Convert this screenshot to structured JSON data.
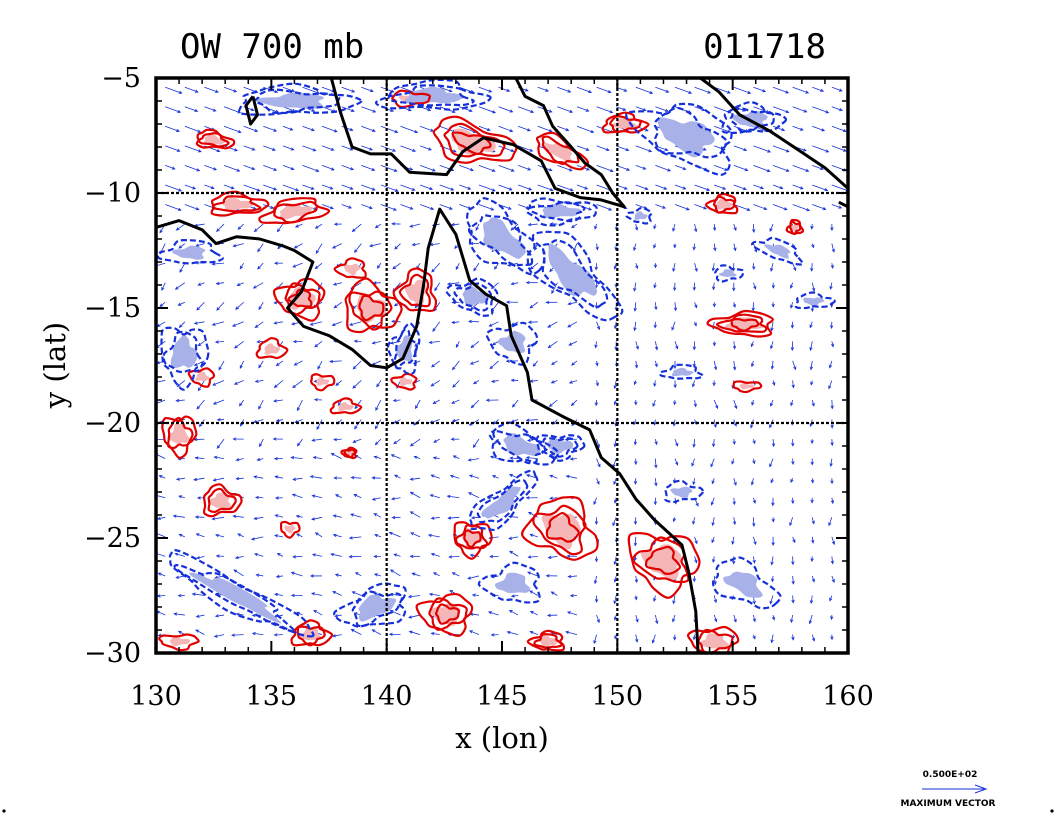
{
  "chart_data": {
    "type": "heatmap",
    "title": "OW 700 mb",
    "title_right": "011718",
    "xlabel": "x (lon)",
    "ylabel": "y (lat)",
    "xlim": [
      130,
      160
    ],
    "ylim": [
      -30,
      -5
    ],
    "xticks": [
      130,
      135,
      140,
      145,
      150,
      155,
      160
    ],
    "yticks": [
      -5,
      -10,
      -15,
      -20,
      -25,
      -30
    ],
    "grid_lines": {
      "x": [
        140,
        150
      ],
      "y": [
        -10,
        -20
      ]
    },
    "legend": {
      "value": "0.500E+02",
      "label": "MAXIMUM VECTOR",
      "placement": "bottom-right"
    },
    "colors": {
      "positive_contour": "#e00000",
      "positive_fill": "#f4b6b6",
      "negative_contour": "#1530d8",
      "negative_fill": "#a9b2e8",
      "coastline": "#000000",
      "vectors": "#1530d8"
    },
    "coastline": [
      [
        [
          130.0,
          -11.5
        ],
        [
          131.0,
          -11.2
        ],
        [
          132.0,
          -11.6
        ],
        [
          132.6,
          -12.2
        ],
        [
          133.5,
          -11.9
        ],
        [
          134.5,
          -12.0
        ],
        [
          135.5,
          -12.3
        ],
        [
          136.0,
          -12.5
        ],
        [
          136.8,
          -13.0
        ],
        [
          136.3,
          -14.3
        ],
        [
          135.7,
          -15.0
        ],
        [
          136.4,
          -15.8
        ],
        [
          137.5,
          -16.2
        ],
        [
          138.5,
          -16.8
        ],
        [
          139.3,
          -17.5
        ],
        [
          140.0,
          -17.6
        ],
        [
          140.7,
          -17.2
        ],
        [
          141.3,
          -15.8
        ],
        [
          141.6,
          -14.0
        ],
        [
          141.8,
          -12.4
        ],
        [
          142.3,
          -10.7
        ],
        [
          143.0,
          -11.8
        ],
        [
          143.6,
          -13.8
        ],
        [
          144.3,
          -14.4
        ],
        [
          145.2,
          -14.9
        ],
        [
          145.4,
          -16.2
        ],
        [
          146.1,
          -17.8
        ],
        [
          146.3,
          -19.0
        ],
        [
          147.6,
          -19.7
        ],
        [
          148.8,
          -20.3
        ],
        [
          149.3,
          -21.5
        ],
        [
          150.1,
          -22.2
        ],
        [
          150.8,
          -23.3
        ],
        [
          151.6,
          -24.2
        ],
        [
          152.8,
          -25.3
        ],
        [
          153.1,
          -26.5
        ],
        [
          153.4,
          -28.2
        ],
        [
          153.5,
          -30.0
        ]
      ],
      [
        [
          137.6,
          -5.0
        ],
        [
          138.0,
          -6.5
        ],
        [
          138.5,
          -8.0
        ],
        [
          139.3,
          -8.3
        ],
        [
          140.2,
          -8.3
        ],
        [
          141.0,
          -9.1
        ],
        [
          142.6,
          -9.2
        ],
        [
          143.3,
          -8.2
        ],
        [
          144.2,
          -7.6
        ],
        [
          145.5,
          -7.9
        ],
        [
          146.7,
          -8.6
        ],
        [
          147.3,
          -9.8
        ],
        [
          148.4,
          -10.2
        ],
        [
          149.3,
          -10.3
        ],
        [
          150.3,
          -10.6
        ],
        [
          149.8,
          -10.0
        ],
        [
          149.3,
          -9.2
        ],
        [
          148.6,
          -8.7
        ],
        [
          148.0,
          -8.0
        ],
        [
          147.2,
          -7.1
        ],
        [
          146.8,
          -6.2
        ],
        [
          146.0,
          -5.8
        ],
        [
          145.6,
          -5.0
        ]
      ],
      [
        [
          153.6,
          -5.0
        ],
        [
          154.4,
          -5.6
        ],
        [
          155.3,
          -6.6
        ],
        [
          156.6,
          -7.3
        ],
        [
          157.8,
          -8.1
        ],
        [
          159.0,
          -8.9
        ],
        [
          160.0,
          -9.8
        ]
      ],
      [
        [
          134.2,
          -5.8
        ],
        [
          134.4,
          -6.6
        ],
        [
          134.1,
          -7.0
        ],
        [
          133.9,
          -6.2
        ],
        [
          134.2,
          -5.8
        ]
      ],
      [
        [
          159.6,
          -10.4
        ],
        [
          160.0,
          -10.6
        ]
      ]
    ],
    "features": [
      {
        "sign": "pos",
        "lon": 132.5,
        "lat": -7.7,
        "rx": 0.8,
        "ry": 0.35,
        "rot": 10,
        "levels": 2
      },
      {
        "sign": "pos",
        "lon": 143.7,
        "lat": -7.8,
        "rx": 1.8,
        "ry": 0.8,
        "rot": 15,
        "levels": 3
      },
      {
        "sign": "pos",
        "lon": 147.5,
        "lat": -8.2,
        "rx": 1.2,
        "ry": 0.5,
        "rot": 30,
        "levels": 2
      },
      {
        "sign": "pos",
        "lon": 150.3,
        "lat": -7.0,
        "rx": 0.9,
        "ry": 0.4,
        "rot": 0,
        "levels": 2
      },
      {
        "sign": "pos",
        "lon": 141.0,
        "lat": -5.9,
        "rx": 0.8,
        "ry": 0.3,
        "rot": 0,
        "levels": 1
      },
      {
        "sign": "pos",
        "lon": 133.5,
        "lat": -10.5,
        "rx": 1.2,
        "ry": 0.45,
        "rot": 0,
        "levels": 2
      },
      {
        "sign": "pos",
        "lon": 136.0,
        "lat": -10.8,
        "rx": 1.3,
        "ry": 0.5,
        "rot": -10,
        "levels": 2
      },
      {
        "sign": "pos",
        "lon": 138.5,
        "lat": -13.3,
        "rx": 0.6,
        "ry": 0.4,
        "rot": 0,
        "levels": 1
      },
      {
        "sign": "pos",
        "lon": 136.3,
        "lat": -14.6,
        "rx": 1.0,
        "ry": 0.8,
        "rot": 0,
        "levels": 3
      },
      {
        "sign": "pos",
        "lon": 139.3,
        "lat": -15.0,
        "rx": 1.2,
        "ry": 1.0,
        "rot": 20,
        "levels": 3
      },
      {
        "sign": "pos",
        "lon": 141.3,
        "lat": -14.3,
        "rx": 0.8,
        "ry": 0.9,
        "rot": 0,
        "levels": 2
      },
      {
        "sign": "pos",
        "lon": 135.0,
        "lat": -16.8,
        "rx": 0.6,
        "ry": 0.4,
        "rot": 0,
        "levels": 1
      },
      {
        "sign": "pos",
        "lon": 132.0,
        "lat": -18.0,
        "rx": 0.5,
        "ry": 0.35,
        "rot": 0,
        "levels": 1
      },
      {
        "sign": "pos",
        "lon": 137.2,
        "lat": -18.2,
        "rx": 0.5,
        "ry": 0.3,
        "rot": 0,
        "levels": 1
      },
      {
        "sign": "pos",
        "lon": 138.2,
        "lat": -19.3,
        "rx": 0.6,
        "ry": 0.3,
        "rot": 0,
        "levels": 1
      },
      {
        "sign": "pos",
        "lon": 140.8,
        "lat": -18.2,
        "rx": 0.5,
        "ry": 0.3,
        "rot": 0,
        "levels": 1
      },
      {
        "sign": "pos",
        "lon": 154.6,
        "lat": -10.5,
        "rx": 0.6,
        "ry": 0.4,
        "rot": 0,
        "levels": 2
      },
      {
        "sign": "pos",
        "lon": 157.7,
        "lat": -11.5,
        "rx": 0.3,
        "ry": 0.3,
        "rot": 0,
        "levels": 2
      },
      {
        "sign": "pos",
        "lon": 155.5,
        "lat": -15.7,
        "rx": 1.3,
        "ry": 0.5,
        "rot": 0,
        "levels": 3
      },
      {
        "sign": "pos",
        "lon": 155.6,
        "lat": -18.4,
        "rx": 0.6,
        "ry": 0.2,
        "rot": 0,
        "levels": 1
      },
      {
        "sign": "pos",
        "lon": 131.0,
        "lat": -20.5,
        "rx": 0.7,
        "ry": 0.8,
        "rot": 0,
        "levels": 2
      },
      {
        "sign": "pos",
        "lon": 132.8,
        "lat": -23.4,
        "rx": 0.8,
        "ry": 0.6,
        "rot": 0,
        "levels": 2
      },
      {
        "sign": "pos",
        "lon": 138.4,
        "lat": -21.3,
        "rx": 0.3,
        "ry": 0.2,
        "rot": 0,
        "levels": 2
      },
      {
        "sign": "pos",
        "lon": 143.7,
        "lat": -25.0,
        "rx": 0.8,
        "ry": 0.7,
        "rot": 0,
        "levels": 3
      },
      {
        "sign": "pos",
        "lon": 147.6,
        "lat": -24.6,
        "rx": 1.5,
        "ry": 1.2,
        "rot": 30,
        "levels": 3
      },
      {
        "sign": "pos",
        "lon": 152.0,
        "lat": -26.0,
        "rx": 1.5,
        "ry": 1.2,
        "rot": 20,
        "levels": 3
      },
      {
        "sign": "pos",
        "lon": 142.6,
        "lat": -28.3,
        "rx": 1.1,
        "ry": 0.8,
        "rot": 0,
        "levels": 3
      },
      {
        "sign": "pos",
        "lon": 135.8,
        "lat": -24.6,
        "rx": 0.4,
        "ry": 0.3,
        "rot": 0,
        "levels": 1
      },
      {
        "sign": "pos",
        "lon": 136.7,
        "lat": -29.2,
        "rx": 0.8,
        "ry": 0.5,
        "rot": 0,
        "levels": 2
      },
      {
        "sign": "pos",
        "lon": 131.0,
        "lat": -29.5,
        "rx": 0.8,
        "ry": 0.3,
        "rot": 0,
        "levels": 1
      },
      {
        "sign": "pos",
        "lon": 154.2,
        "lat": -29.5,
        "rx": 1.0,
        "ry": 0.6,
        "rot": 0,
        "levels": 2
      },
      {
        "sign": "pos",
        "lon": 147.0,
        "lat": -29.5,
        "rx": 0.7,
        "ry": 0.4,
        "rot": 0,
        "levels": 2
      },
      {
        "sign": "neg",
        "lon": 136.0,
        "lat": -6.0,
        "rx": 2.5,
        "ry": 0.6,
        "rot": 0,
        "levels": 2
      },
      {
        "sign": "neg",
        "lon": 142.0,
        "lat": -5.8,
        "rx": 2.2,
        "ry": 0.6,
        "rot": 0,
        "levels": 2
      },
      {
        "sign": "neg",
        "lon": 153.0,
        "lat": -7.5,
        "rx": 2.2,
        "ry": 1.2,
        "rot": 20,
        "levels": 2
      },
      {
        "sign": "neg",
        "lon": 155.8,
        "lat": -6.8,
        "rx": 1.3,
        "ry": 0.6,
        "rot": 0,
        "levels": 2
      },
      {
        "sign": "neg",
        "lon": 131.5,
        "lat": -12.6,
        "rx": 1.2,
        "ry": 0.5,
        "rot": 0,
        "levels": 1
      },
      {
        "sign": "neg",
        "lon": 143.8,
        "lat": -14.5,
        "rx": 1.0,
        "ry": 0.7,
        "rot": 10,
        "levels": 2
      },
      {
        "sign": "neg",
        "lon": 145.0,
        "lat": -12.0,
        "rx": 2.0,
        "ry": 1.0,
        "rot": 40,
        "levels": 2
      },
      {
        "sign": "neg",
        "lon": 148.0,
        "lat": -13.5,
        "rx": 2.5,
        "ry": 1.0,
        "rot": 45,
        "levels": 2
      },
      {
        "sign": "neg",
        "lon": 147.5,
        "lat": -10.8,
        "rx": 1.5,
        "ry": 0.5,
        "rot": 0,
        "levels": 2
      },
      {
        "sign": "neg",
        "lon": 140.8,
        "lat": -16.8,
        "rx": 0.6,
        "ry": 1.0,
        "rot": 10,
        "levels": 2
      },
      {
        "sign": "neg",
        "lon": 145.5,
        "lat": -16.5,
        "rx": 1.0,
        "ry": 0.8,
        "rot": 0,
        "levels": 1
      },
      {
        "sign": "neg",
        "lon": 131.2,
        "lat": -17.0,
        "rx": 1.0,
        "ry": 1.2,
        "rot": 0,
        "levels": 2
      },
      {
        "sign": "neg",
        "lon": 145.8,
        "lat": -21.0,
        "rx": 1.5,
        "ry": 0.7,
        "rot": 20,
        "levels": 2
      },
      {
        "sign": "neg",
        "lon": 147.5,
        "lat": -21.0,
        "rx": 1.0,
        "ry": 0.5,
        "rot": 0,
        "levels": 2
      },
      {
        "sign": "neg",
        "lon": 145.0,
        "lat": -23.5,
        "rx": 1.8,
        "ry": 0.6,
        "rot": -40,
        "levels": 2
      },
      {
        "sign": "neg",
        "lon": 133.5,
        "lat": -27.5,
        "rx": 3.5,
        "ry": 0.6,
        "rot": 28,
        "levels": 2
      },
      {
        "sign": "neg",
        "lon": 139.5,
        "lat": -28.0,
        "rx": 1.5,
        "ry": 0.8,
        "rot": -20,
        "levels": 2
      },
      {
        "sign": "neg",
        "lon": 145.5,
        "lat": -27.0,
        "rx": 1.2,
        "ry": 0.8,
        "rot": 0,
        "levels": 1
      },
      {
        "sign": "neg",
        "lon": 155.5,
        "lat": -27.0,
        "rx": 1.5,
        "ry": 0.8,
        "rot": 30,
        "levels": 1
      },
      {
        "sign": "neg",
        "lon": 152.8,
        "lat": -23.0,
        "rx": 0.8,
        "ry": 0.4,
        "rot": 0,
        "levels": 1
      },
      {
        "sign": "neg",
        "lon": 152.8,
        "lat": -17.8,
        "rx": 0.8,
        "ry": 0.3,
        "rot": 0,
        "levels": 1
      },
      {
        "sign": "neg",
        "lon": 154.8,
        "lat": -13.5,
        "rx": 0.6,
        "ry": 0.3,
        "rot": 0,
        "levels": 1
      },
      {
        "sign": "neg",
        "lon": 157.0,
        "lat": -12.5,
        "rx": 1.0,
        "ry": 0.4,
        "rot": 20,
        "levels": 1
      },
      {
        "sign": "neg",
        "lon": 158.5,
        "lat": -14.7,
        "rx": 0.8,
        "ry": 0.3,
        "rot": 0,
        "levels": 1
      },
      {
        "sign": "neg",
        "lon": 151.0,
        "lat": -11.0,
        "rx": 0.5,
        "ry": 0.3,
        "rot": 0,
        "levels": 1
      }
    ]
  }
}
